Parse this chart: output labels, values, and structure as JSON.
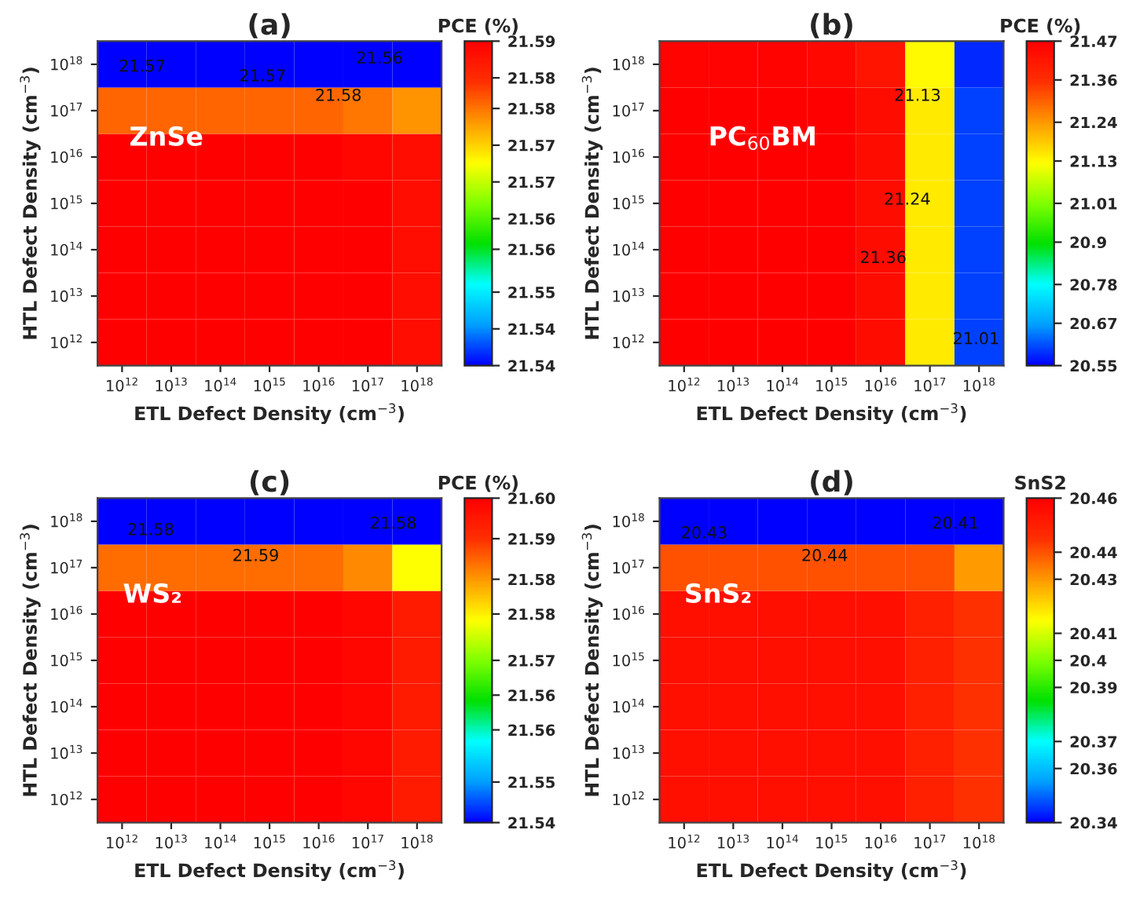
{
  "chart_data": [
    {
      "type": "heatmap",
      "title": "(a)",
      "xlabel": "ETL Defect Density (cm$^{−3}$)",
      "ylabel": "HTL Defect Density (cm$^{−3}$)",
      "clabel": "PCE (%)",
      "categories": [
        "10$^{12}$",
        "10$^{13}$",
        "10$^{14}$",
        "10$^{15}$",
        "10$^{16}$",
        "10$^{17}$",
        "10$^{18}$"
      ],
      "y_categories": [
        "10$^{18}$",
        "10$^{17}$",
        "10$^{16}$",
        "10$^{15}$",
        "10$^{14}$",
        "10$^{13}$",
        "10$^{12}$"
      ],
      "cells": [
        [
          21.537,
          21.537,
          21.537,
          21.537,
          21.537,
          21.537,
          21.537
        ],
        [
          21.58,
          21.58,
          21.58,
          21.58,
          21.58,
          21.579,
          21.577
        ],
        [
          21.59,
          21.59,
          21.59,
          21.59,
          21.59,
          21.589,
          21.588
        ],
        [
          21.59,
          21.59,
          21.59,
          21.59,
          21.59,
          21.59,
          21.588
        ],
        [
          21.59,
          21.59,
          21.59,
          21.59,
          21.59,
          21.59,
          21.588
        ],
        [
          21.59,
          21.59,
          21.59,
          21.59,
          21.59,
          21.59,
          21.588
        ],
        [
          21.59,
          21.59,
          21.59,
          21.59,
          21.59,
          21.59,
          21.588
        ]
      ],
      "clim": [
        21.537,
        21.59
      ],
      "cticks": [
        {
          "value": 21.537,
          "label": "21.54"
        },
        {
          "value": 21.543,
          "label": "21.54"
        },
        {
          "value": 21.549,
          "label": "21.55"
        },
        {
          "value": 21.556,
          "label": "21.56"
        },
        {
          "value": 21.561,
          "label": "21.56"
        },
        {
          "value": 21.567,
          "label": "21.57"
        },
        {
          "value": 21.573,
          "label": "21.57"
        },
        {
          "value": 21.579,
          "label": "21.58"
        },
        {
          "value": 21.584,
          "label": "21.58"
        },
        {
          "value": 21.59,
          "label": "21.59"
        }
      ],
      "annotations": [
        "ZnSe",
        "21.57",
        "21.57",
        "21.58",
        "21.56"
      ]
    },
    {
      "type": "heatmap",
      "title": "(b)",
      "xlabel": "ETL Defect Density (cm$^{−3}$)",
      "ylabel": "HTL Defect Density (cm$^{−3}$)",
      "clabel": "PCE (%)",
      "categories": [
        "10$^{12}$",
        "10$^{13}$",
        "10$^{14}$",
        "10$^{15}$",
        "10$^{16}$",
        "10$^{17}$",
        "10$^{18}$"
      ],
      "y_categories": [
        "10$^{18}$",
        "10$^{17}$",
        "10$^{16}$",
        "10$^{15}$",
        "10$^{14}$",
        "10$^{13}$",
        "10$^{12}$"
      ],
      "cells": [
        [
          21.46,
          21.46,
          21.46,
          21.45,
          21.42,
          21.13,
          20.58
        ],
        [
          21.47,
          21.47,
          21.47,
          21.47,
          21.44,
          21.15,
          20.6
        ],
        [
          21.47,
          21.47,
          21.47,
          21.47,
          21.44,
          21.15,
          20.6
        ],
        [
          21.47,
          21.47,
          21.47,
          21.47,
          21.44,
          21.15,
          20.6
        ],
        [
          21.47,
          21.47,
          21.47,
          21.47,
          21.44,
          21.15,
          20.6
        ],
        [
          21.47,
          21.47,
          21.47,
          21.47,
          21.44,
          21.15,
          20.6
        ],
        [
          21.47,
          21.47,
          21.47,
          21.47,
          21.44,
          21.15,
          20.6
        ]
      ],
      "clim": [
        20.55,
        21.47
      ],
      "cticks": [
        20.55,
        20.67,
        20.78,
        20.9,
        21.01,
        21.13,
        21.24,
        21.36,
        21.47
      ],
      "annotations": [
        "PC$_{60}$BM",
        "21.13",
        "21.24",
        "21.36",
        "21.01"
      ]
    },
    {
      "type": "heatmap",
      "title": "(c)",
      "xlabel": "ETL Defect Density (cm$^{−3}$)",
      "ylabel": "HTL Defect Density (cm$^{−3}$)",
      "clabel": "PCE (%)",
      "categories": [
        "10$^{12}$",
        "10$^{13}$",
        "10$^{14}$",
        "10$^{15}$",
        "10$^{16}$",
        "10$^{17}$",
        "10$^{18}$"
      ],
      "y_categories": [
        "10$^{18}$",
        "10$^{17}$",
        "10$^{16}$",
        "10$^{15}$",
        "10$^{14}$",
        "10$^{13}$",
        "10$^{12}$"
      ],
      "cells": [
        [
          21.54,
          21.54,
          21.54,
          21.54,
          21.54,
          21.54,
          21.54
        ],
        [
          21.585,
          21.585,
          21.585,
          21.585,
          21.585,
          21.583,
          21.575
        ],
        [
          21.596,
          21.596,
          21.596,
          21.596,
          21.596,
          21.595,
          21.592
        ],
        [
          21.596,
          21.596,
          21.596,
          21.596,
          21.596,
          21.595,
          21.592
        ],
        [
          21.596,
          21.596,
          21.596,
          21.596,
          21.596,
          21.595,
          21.592
        ],
        [
          21.596,
          21.596,
          21.596,
          21.596,
          21.596,
          21.595,
          21.592
        ],
        [
          21.596,
          21.596,
          21.596,
          21.596,
          21.596,
          21.595,
          21.592
        ]
      ],
      "clim": [
        21.54,
        21.596
      ],
      "cticks": [
        {
          "value": 21.54,
          "label": "21.54"
        },
        {
          "value": 21.547,
          "label": "21.55"
        },
        {
          "value": 21.556,
          "label": "21.56"
        },
        {
          "value": 21.562,
          "label": "21.56"
        },
        {
          "value": 21.568,
          "label": "21.57"
        },
        {
          "value": 21.576,
          "label": "21.58"
        },
        {
          "value": 21.582,
          "label": "21.58"
        },
        {
          "value": 21.589,
          "label": "21.59"
        },
        {
          "value": 21.596,
          "label": "21.60"
        }
      ],
      "annotations": [
        "WS₂",
        "21.58",
        "21.59",
        "21.58"
      ]
    },
    {
      "type": "heatmap",
      "title": "(d)",
      "xlabel": "ETL Defect Density (cm$^{−3}$)",
      "ylabel": "HTL Defect Density (cm$^{−3}$)",
      "clabel": "SnS2",
      "categories": [
        "10$^{12}$",
        "10$^{13}$",
        "10$^{14}$",
        "10$^{15}$",
        "10$^{16}$",
        "10$^{17}$",
        "10$^{18}$"
      ],
      "y_categories": [
        "10$^{18}$",
        "10$^{17}$",
        "10$^{16}$",
        "10$^{15}$",
        "10$^{14}$",
        "10$^{13}$",
        "10$^{12}$"
      ],
      "cells": [
        [
          20.34,
          20.34,
          20.34,
          20.34,
          20.34,
          20.34,
          20.34
        ],
        [
          20.44,
          20.44,
          20.44,
          20.44,
          20.44,
          20.44,
          20.43
        ],
        [
          20.455,
          20.455,
          20.455,
          20.455,
          20.455,
          20.45,
          20.445
        ],
        [
          20.455,
          20.455,
          20.455,
          20.455,
          20.455,
          20.45,
          20.445
        ],
        [
          20.455,
          20.455,
          20.455,
          20.455,
          20.455,
          20.45,
          20.445
        ],
        [
          20.455,
          20.455,
          20.455,
          20.455,
          20.455,
          20.45,
          20.445
        ],
        [
          20.455,
          20.455,
          20.455,
          20.455,
          20.455,
          20.45,
          20.445
        ]
      ],
      "clim": [
        20.34,
        20.46
      ],
      "cticks": [
        20.34,
        20.36,
        20.37,
        20.39,
        20.4,
        20.41,
        20.43,
        20.44,
        20.46
      ],
      "annotations": [
        "SnS₂",
        "20.43",
        "20.44",
        "20.41"
      ]
    }
  ]
}
